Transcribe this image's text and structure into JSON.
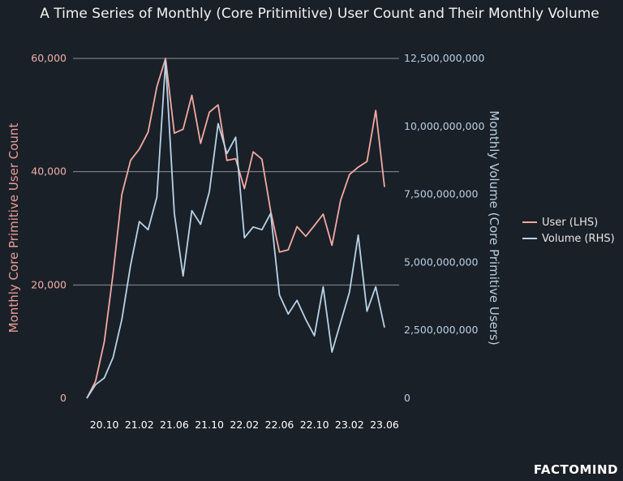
{
  "chart_data": {
    "type": "line",
    "title": "A Time Series of Monthly (Core Pritimitive) User Count and Their Monthly Volume",
    "ylabel_left": "Monthly Core Primitive User Count",
    "ylabel_right": "Monthly Volume (Core Primitive Users)",
    "ylim_left": [
      0,
      60000
    ],
    "ylim_right": [
      0,
      12500000000
    ],
    "yticks_left": [
      "0",
      "20,000",
      "40,000",
      "60,000"
    ],
    "yticks_right": [
      "0",
      "2,500,000,000",
      "5,000,000,000",
      "7,500,000,000",
      "10,000,000,000",
      "12,500,000,000"
    ],
    "xticks": [
      "20.10",
      "21.02",
      "21.06",
      "21.10",
      "22.02",
      "22.06",
      "22.10",
      "23.02",
      "23.06"
    ],
    "grid": "horizontal",
    "legend_position": "right",
    "colors": {
      "user": "#f2a9a2",
      "volume": "#b9d3e6",
      "background": "#1a2028"
    },
    "x": [
      "2020.08",
      "2020.09",
      "2020.10",
      "2020.11",
      "2020.12",
      "2021.01",
      "2021.02",
      "2021.03",
      "2021.04",
      "2021.05",
      "2021.06",
      "2021.07",
      "2021.08",
      "2021.09",
      "2021.10",
      "2021.11",
      "2021.12",
      "2022.01",
      "2022.02",
      "2022.03",
      "2022.04",
      "2022.05",
      "2022.06",
      "2022.07",
      "2022.08",
      "2022.09",
      "2022.10",
      "2022.11",
      "2022.12",
      "2023.01",
      "2023.02",
      "2023.03",
      "2023.04",
      "2023.05",
      "2023.06"
    ],
    "series": [
      {
        "name": "User (LHS)",
        "axis": "left",
        "values": [
          0,
          3000,
          10000,
          22000,
          36000,
          42000,
          44000,
          47000,
          55000,
          60000,
          46800,
          47500,
          53500,
          45000,
          50500,
          51800,
          42000,
          42300,
          37000,
          43500,
          42200,
          33000,
          25800,
          26200,
          30300,
          28600,
          30500,
          32500,
          27000,
          35000,
          39500,
          40800,
          41800,
          50800,
          37300
        ]
      },
      {
        "name": "Volume (RHS)",
        "axis": "right",
        "values": [
          0,
          500000000,
          750000000,
          1500000000,
          2900000000,
          4900000000,
          6500000000,
          6200000000,
          7400000000,
          12400000000,
          6800000000,
          4500000000,
          6900000000,
          6400000000,
          7600000000,
          10100000000,
          9000000000,
          9600000000,
          5900000000,
          6300000000,
          6200000000,
          6800000000,
          3800000000,
          3100000000,
          3600000000,
          2900000000,
          2300000000,
          4100000000,
          1700000000,
          2800000000,
          3900000000,
          6000000000,
          3200000000,
          4100000000,
          2600000000
        ]
      }
    ]
  },
  "brand": "FACTOMIND"
}
